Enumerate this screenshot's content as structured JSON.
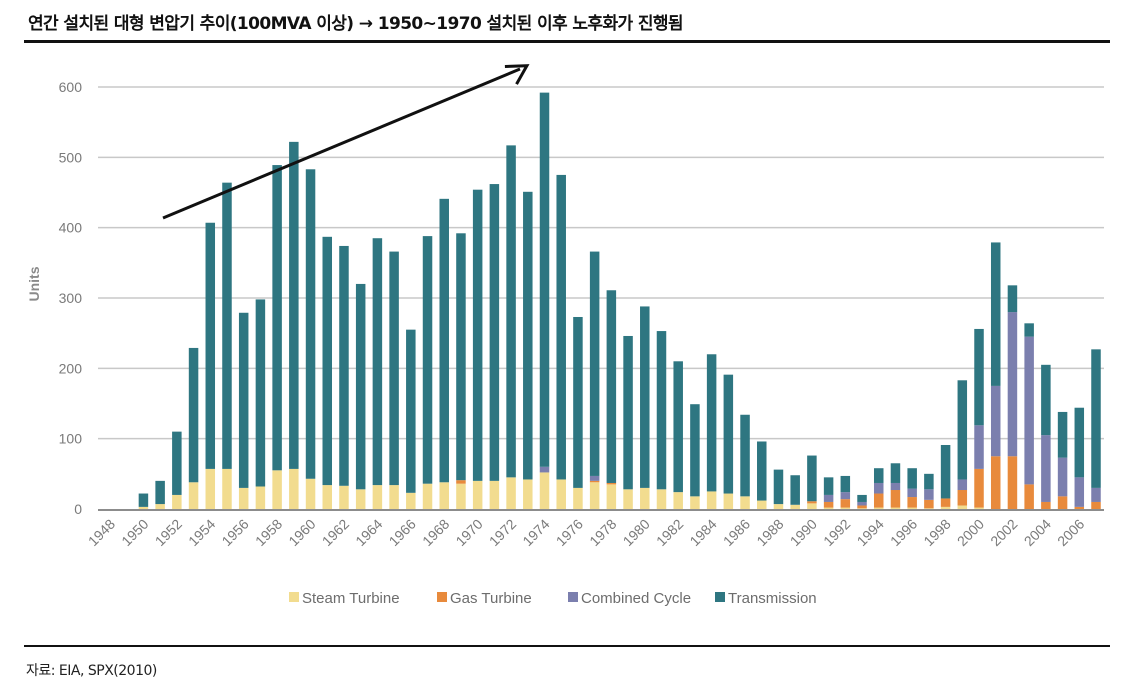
{
  "header": {
    "title": "연간 설치된 대형 변압기 추이(100MVA 이상) → 1950~1970 설치된 이후 노후화가 진행됨"
  },
  "footer": {
    "source": "자료: EIA, SPX(2010)"
  },
  "chart_data": {
    "type": "bar",
    "stacked": true,
    "title": "",
    "xlabel": "",
    "ylabel": "Units",
    "ylim": [
      0,
      600
    ],
    "yticks": [
      0,
      100,
      200,
      300,
      400,
      500,
      600
    ],
    "grid": true,
    "legend_position": "bottom",
    "annotation": "upward trend arrow",
    "x": [
      1948,
      1949,
      1950,
      1951,
      1952,
      1953,
      1954,
      1955,
      1956,
      1957,
      1958,
      1959,
      1960,
      1961,
      1962,
      1963,
      1964,
      1965,
      1966,
      1967,
      1968,
      1969,
      1970,
      1971,
      1972,
      1973,
      1974,
      1975,
      1976,
      1977,
      1978,
      1979,
      1980,
      1981,
      1982,
      1983,
      1984,
      1985,
      1986,
      1987,
      1988,
      1989,
      1990,
      1991,
      1992,
      1993,
      1994,
      1995,
      1996,
      1997,
      1998,
      1999,
      2000,
      2001,
      2002,
      2003,
      2004,
      2005,
      2006,
      2007
    ],
    "xtick_labels": [
      "1948",
      "1950",
      "1952",
      "1954",
      "1956",
      "1958",
      "1960",
      "1962",
      "1964",
      "1966",
      "1968",
      "1970",
      "1972",
      "1974",
      "1976",
      "1978",
      "1980",
      "1982",
      "1984",
      "1986",
      "1988",
      "1990",
      "1992",
      "1994",
      "1996",
      "1998",
      "2000",
      "2002",
      "2004",
      "2006"
    ],
    "series": [
      {
        "name": "Steam Turbine",
        "color": "#f2dc8f",
        "values": [
          0,
          0,
          3,
          7,
          20,
          38,
          57,
          57,
          30,
          32,
          55,
          57,
          43,
          34,
          33,
          28,
          34,
          34,
          23,
          36,
          38,
          36,
          40,
          40,
          45,
          42,
          52,
          42,
          30,
          38,
          35,
          28,
          30,
          28,
          24,
          18,
          25,
          22,
          18,
          12,
          7,
          6,
          8,
          2,
          2,
          1,
          2,
          2,
          2,
          1,
          3,
          5,
          2,
          0,
          0,
          0,
          0,
          0,
          0,
          0
        ]
      },
      {
        "name": "Gas Turbine",
        "color": "#e88a3c",
        "values": [
          0,
          0,
          0,
          0,
          0,
          0,
          0,
          0,
          0,
          0,
          0,
          0,
          0,
          0,
          0,
          0,
          0,
          0,
          0,
          0,
          0,
          5,
          0,
          0,
          0,
          0,
          0,
          0,
          0,
          2,
          2,
          0,
          0,
          0,
          0,
          0,
          0,
          0,
          0,
          0,
          0,
          0,
          3,
          8,
          12,
          4,
          20,
          25,
          15,
          12,
          12,
          22,
          55,
          75,
          75,
          35,
          10,
          18,
          3,
          10
        ]
      },
      {
        "name": "Combined Cycle",
        "color": "#7b7fae",
        "values": [
          0,
          0,
          0,
          0,
          0,
          0,
          0,
          0,
          0,
          0,
          0,
          0,
          0,
          0,
          0,
          0,
          0,
          0,
          0,
          0,
          0,
          0,
          0,
          0,
          0,
          0,
          8,
          0,
          0,
          7,
          0,
          0,
          0,
          0,
          0,
          0,
          0,
          0,
          0,
          0,
          0,
          0,
          0,
          10,
          10,
          5,
          15,
          10,
          12,
          15,
          0,
          15,
          62,
          100,
          205,
          210,
          95,
          55,
          42,
          20
        ]
      },
      {
        "name": "Transmission",
        "color": "#2e7681",
        "values": [
          0,
          0,
          19,
          33,
          90,
          191,
          350,
          407,
          249,
          266,
          434,
          465,
          440,
          353,
          341,
          292,
          351,
          332,
          232,
          352,
          403,
          351,
          414,
          422,
          472,
          409,
          532,
          433,
          243,
          319,
          274,
          218,
          258,
          225,
          186,
          131,
          195,
          169,
          116,
          84,
          49,
          42,
          65,
          25,
          23,
          10,
          21,
          28,
          29,
          22,
          76,
          141,
          137,
          204,
          38,
          19,
          100,
          65,
          99,
          197
        ]
      }
    ]
  }
}
